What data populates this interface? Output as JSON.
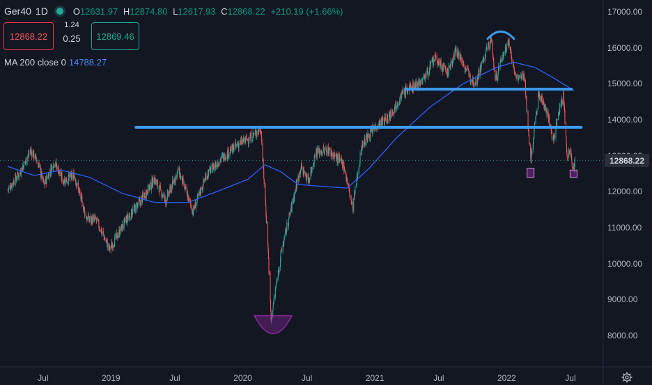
{
  "symbol": "Ger40",
  "interval": "1D",
  "ohlc": {
    "o_label": "O",
    "o": "12631.97",
    "h_label": "H",
    "h": "12874.80",
    "l_label": "L",
    "l": "12617.93",
    "c_label": "C",
    "c": "12868.22",
    "change": "+210.19 (+1.66%)"
  },
  "trade": {
    "sell": "12868.22",
    "spread_top": "1.24",
    "spread_bottom": "0.25",
    "buy": "12869.46"
  },
  "ma": {
    "label": "MA 200 close 0",
    "value": "14788.27"
  },
  "last_price": "12868.22",
  "icons": {
    "status": "green-dot-icon",
    "settings": "gear-icon"
  },
  "colors": {
    "up": "#26a69a",
    "down": "#ef5350",
    "ma": "#2962ff",
    "drawing": "#3d9bf0",
    "highlight": "#9c27b0",
    "background": "#131722"
  },
  "chart_data": {
    "type": "candlestick",
    "y_axis_ticks": [
      "17000.00",
      "16000.00",
      "15000.00",
      "14000.00",
      "13000.00",
      "12000.00",
      "11000.00",
      "10000.00",
      "9000.00",
      "8000.00"
    ],
    "ylim": [
      7600,
      17200
    ],
    "x_axis_ticks": [
      "Jul",
      "2019",
      "Jul",
      "2020",
      "Jul",
      "2021",
      "Jul",
      "2022",
      "Jul"
    ],
    "xlim": [
      "2018-03-20",
      "2022-09-01"
    ],
    "close_anchors": [
      [
        "2018-03-20",
        12050
      ],
      [
        "2018-04-20",
        12500
      ],
      [
        "2018-05-22",
        13150
      ],
      [
        "2018-06-10",
        12850
      ],
      [
        "2018-06-28",
        12200
      ],
      [
        "2018-07-27",
        12850
      ],
      [
        "2018-08-20",
        12300
      ],
      [
        "2018-09-20",
        12450
      ],
      [
        "2018-10-25",
        11250
      ],
      [
        "2018-11-20",
        11200
      ],
      [
        "2018-12-27",
        10400
      ],
      [
        "2019-02-10",
        11200
      ],
      [
        "2019-03-20",
        11700
      ],
      [
        "2019-04-30",
        12350
      ],
      [
        "2019-05-31",
        11750
      ],
      [
        "2019-07-05",
        12600
      ],
      [
        "2019-08-15",
        11450
      ],
      [
        "2019-09-20",
        12450
      ],
      [
        "2019-10-30",
        12900
      ],
      [
        "2019-12-15",
        13300
      ],
      [
        "2020-01-20",
        13500
      ],
      [
        "2020-02-19",
        13750
      ],
      [
        "2020-03-09",
        10600
      ],
      [
        "2020-03-18",
        8450
      ],
      [
        "2020-04-15",
        10300
      ],
      [
        "2020-06-08",
        12700
      ],
      [
        "2020-06-30",
        12300
      ],
      [
        "2020-07-20",
        13100
      ],
      [
        "2020-08-25",
        13150
      ],
      [
        "2020-10-05",
        12750
      ],
      [
        "2020-10-30",
        11550
      ],
      [
        "2020-11-25",
        13300
      ],
      [
        "2021-01-05",
        13850
      ],
      [
        "2021-02-05",
        14050
      ],
      [
        "2021-03-18",
        14750
      ],
      [
        "2021-05-12",
        15100
      ],
      [
        "2021-06-15",
        15700
      ],
      [
        "2021-07-20",
        15300
      ],
      [
        "2021-08-13",
        15950
      ],
      [
        "2021-09-20",
        15200
      ],
      [
        "2021-10-05",
        15050
      ],
      [
        "2021-11-17",
        16250
      ],
      [
        "2021-11-30",
        15100
      ],
      [
        "2021-12-15",
        15650
      ],
      [
        "2022-01-05",
        16200
      ],
      [
        "2022-01-25",
        15150
      ],
      [
        "2022-02-18",
        15200
      ],
      [
        "2022-03-07",
        12850
      ],
      [
        "2022-03-29",
        14700
      ],
      [
        "2022-04-20",
        14300
      ],
      [
        "2022-05-09",
        13400
      ],
      [
        "2022-05-25",
        14300
      ],
      [
        "2022-06-06",
        14650
      ],
      [
        "2022-06-16",
        13000
      ],
      [
        "2022-06-24",
        13100
      ],
      [
        "2022-07-04",
        12600
      ],
      [
        "2022-07-08",
        12868
      ]
    ],
    "ma200_anchors": [
      [
        "2018-03-20",
        12700
      ],
      [
        "2018-06-01",
        12450
      ],
      [
        "2018-08-15",
        12600
      ],
      [
        "2018-11-01",
        12400
      ],
      [
        "2019-02-01",
        11950
      ],
      [
        "2019-05-01",
        11700
      ],
      [
        "2019-08-01",
        11700
      ],
      [
        "2019-11-01",
        12050
      ],
      [
        "2020-01-15",
        12350
      ],
      [
        "2020-03-01",
        12750
      ],
      [
        "2020-04-15",
        12550
      ],
      [
        "2020-06-01",
        12200
      ],
      [
        "2020-08-01",
        12150
      ],
      [
        "2020-10-15",
        12100
      ],
      [
        "2020-12-15",
        12650
      ],
      [
        "2021-03-01",
        13500
      ],
      [
        "2021-06-01",
        14350
      ],
      [
        "2021-09-01",
        15000
      ],
      [
        "2021-12-01",
        15450
      ],
      [
        "2022-01-20",
        15600
      ],
      [
        "2022-03-20",
        15450
      ],
      [
        "2022-05-20",
        15100
      ],
      [
        "2022-07-08",
        14788
      ]
    ],
    "horizontal_levels": [
      {
        "value": 13790,
        "from": "2019-03-10",
        "to": "2022-07-25"
      },
      {
        "value": 14850,
        "from": "2021-03-25",
        "to": "2022-06-28"
      }
    ],
    "arc_top": {
      "from": "2021-11-08",
      "to": "2022-01-20",
      "base": 16250,
      "peak": 16450
    },
    "bowl": {
      "from": "2020-02-01",
      "to": "2020-05-15",
      "rim": 8550,
      "bottom": 8050
    },
    "markers": [
      {
        "date": "2022-03-07",
        "low": 12400,
        "high": 12650
      },
      {
        "date": "2022-07-04",
        "low": 12400,
        "high": 12600
      }
    ],
    "current_value": 12868.22,
    "grid": false,
    "legend": "top-left"
  }
}
